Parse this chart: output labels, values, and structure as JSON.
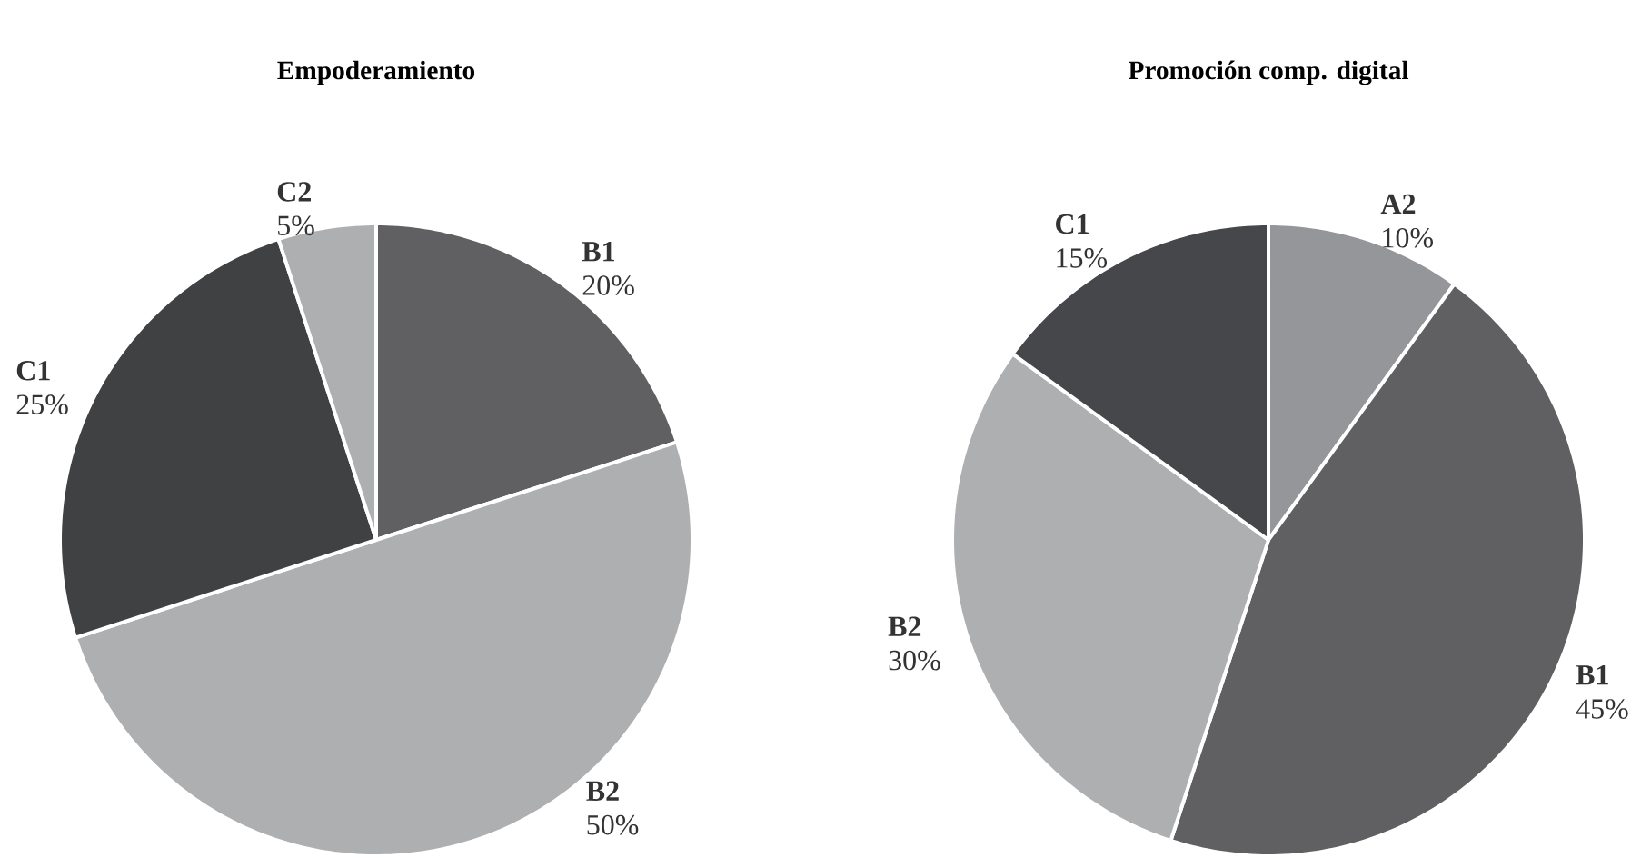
{
  "chart_data": [
    {
      "type": "pie",
      "title": "Empoderamiento",
      "categories": [
        "B1",
        "B2",
        "C1",
        "C2"
      ],
      "values": [
        20,
        50,
        25,
        5
      ],
      "value_labels": [
        "20%",
        "50%",
        "25%",
        "5%"
      ],
      "colors": [
        "#606062",
        "#aeafb1",
        "#404143",
        "#aeafb1"
      ]
    },
    {
      "type": "pie",
      "title": "Promoción comp. digital",
      "categories": [
        "A2",
        "B1",
        "B2",
        "C1"
      ],
      "values": [
        10,
        45,
        30,
        15
      ],
      "value_labels": [
        "10%",
        "45%",
        "30%",
        "15%"
      ],
      "colors": [
        "#959699",
        "#606062",
        "#aeafb1",
        "#46474a"
      ]
    }
  ]
}
